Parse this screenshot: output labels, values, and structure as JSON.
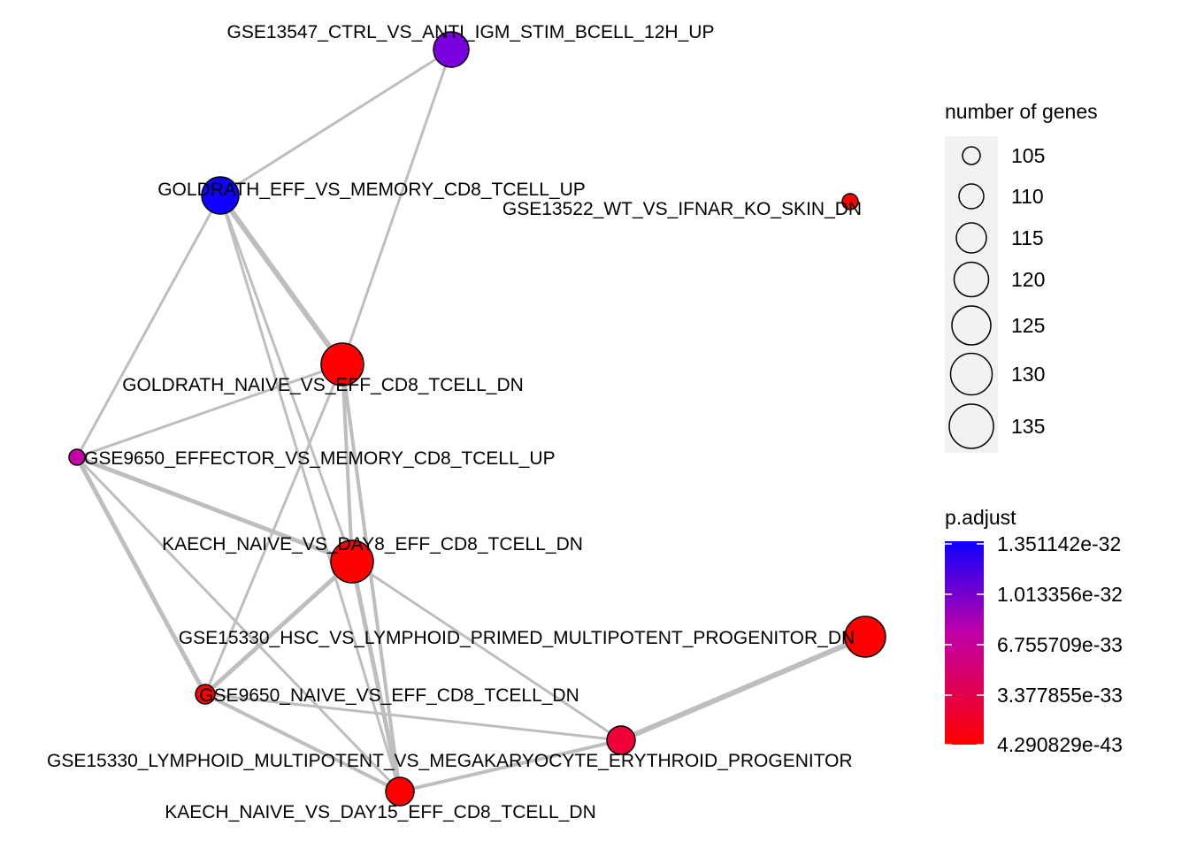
{
  "nodes": [
    {
      "id": "n1",
      "label": "GSE13547_CTRL_VS_ANTI_IGM_STIM_BCELL_12H_UP",
      "color": "#7A00E0"
    },
    {
      "id": "n2",
      "label": "GOLDRATH_EFF_VS_MEMORY_CD8_TCELL_UP",
      "color": "#0F00FF"
    },
    {
      "id": "n3",
      "label": "GSE13522_WT_VS_IFNAR_KO_SKIN_DN",
      "color": "#FF0000"
    },
    {
      "id": "n4",
      "label": "GOLDRATH_NAIVE_VS_EFF_CD8_TCELL_DN",
      "color": "#FF0000"
    },
    {
      "id": "n5",
      "label": "GSE9650_EFFECTOR_VS_MEMORY_CD8_TCELL_UP",
      "color": "#C800A8"
    },
    {
      "id": "n6",
      "label": "KAECH_NAIVE_VS_DAY8_EFF_CD8_TCELL_DN",
      "color": "#FF0000"
    },
    {
      "id": "n7",
      "label": "GSE15330_HSC_VS_LYMPHOID_PRIMED_MULTIPOTENT_PROGENITOR_DN",
      "color": "#FF0000"
    },
    {
      "id": "n8",
      "label": "GSE9650_NAIVE_VS_EFF_CD8_TCELL_DN",
      "color": "#FF0000"
    },
    {
      "id": "n9",
      "label": "GSE15330_LYMPHOID_MULTIPOTENT_VS_MEGAKARYOCYTE_ERYTHROID_PROGENITOR",
      "color": "#F00038"
    },
    {
      "id": "n10",
      "label": "KAECH_NAIVE_VS_DAY15_EFF_CD8_TCELL_DN",
      "color": "#FF0000"
    }
  ],
  "edges": [
    {
      "from": "n1",
      "to": "n2",
      "weight": 3
    },
    {
      "from": "n1",
      "to": "n4",
      "weight": 3
    },
    {
      "from": "n2",
      "to": "n4",
      "weight": 6
    },
    {
      "from": "n2",
      "to": "n5",
      "weight": 3
    },
    {
      "from": "n2",
      "to": "n6",
      "weight": 3
    },
    {
      "from": "n2",
      "to": "n10",
      "weight": 3
    },
    {
      "from": "n4",
      "to": "n5",
      "weight": 3
    },
    {
      "from": "n4",
      "to": "n6",
      "weight": 4
    },
    {
      "from": "n4",
      "to": "n8",
      "weight": 3
    },
    {
      "from": "n4",
      "to": "n10",
      "weight": 4
    },
    {
      "from": "n5",
      "to": "n6",
      "weight": 5
    },
    {
      "from": "n5",
      "to": "n8",
      "weight": 5
    },
    {
      "from": "n5",
      "to": "n10",
      "weight": 3
    },
    {
      "from": "n6",
      "to": "n8",
      "weight": 5
    },
    {
      "from": "n6",
      "to": "n9",
      "weight": 3
    },
    {
      "from": "n6",
      "to": "n10",
      "weight": 5
    },
    {
      "from": "n7",
      "to": "n9",
      "weight": 6
    },
    {
      "from": "n8",
      "to": "n9",
      "weight": 3
    },
    {
      "from": "n8",
      "to": "n10",
      "weight": 4
    },
    {
      "from": "n9",
      "to": "n10",
      "weight": 4
    }
  ],
  "legend": {
    "size": {
      "title": "number of genes",
      "items": [
        "105",
        "110",
        "115",
        "120",
        "125",
        "130",
        "135"
      ]
    },
    "color": {
      "title": "p.adjust",
      "ticks": [
        "1.351142e-32",
        "1.013356e-32",
        "6.755709e-33",
        "3.377855e-33",
        "4.290829e-43"
      ],
      "high_color": "#0F00FF",
      "mid_color": "#C000A8",
      "low_color": "#FF0000"
    }
  },
  "style": {
    "edge_color": "#BEBEBE",
    "legend_key_bg": "#F2F2F2"
  }
}
